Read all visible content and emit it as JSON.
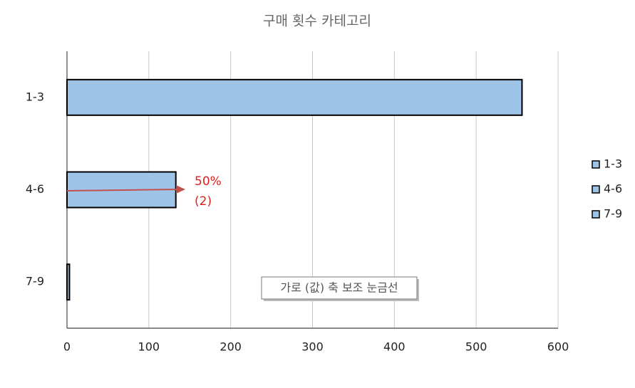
{
  "chart_data": {
    "type": "barh",
    "title": "구매 횟수 카테고리",
    "categories": [
      "1-3",
      "4-6",
      "7-9"
    ],
    "values": [
      556,
      133,
      3
    ],
    "color": "#9dc3e6",
    "xlim": [
      0,
      600
    ],
    "xticks": [
      0,
      100,
      200,
      300,
      400,
      500,
      600
    ],
    "grid": true,
    "legend": "right",
    "annotation": {
      "lines": [
        "50%",
        "(2)"
      ],
      "color": "#e0201b"
    },
    "tooltip": "가로 (값) 축 보조 눈금선"
  }
}
